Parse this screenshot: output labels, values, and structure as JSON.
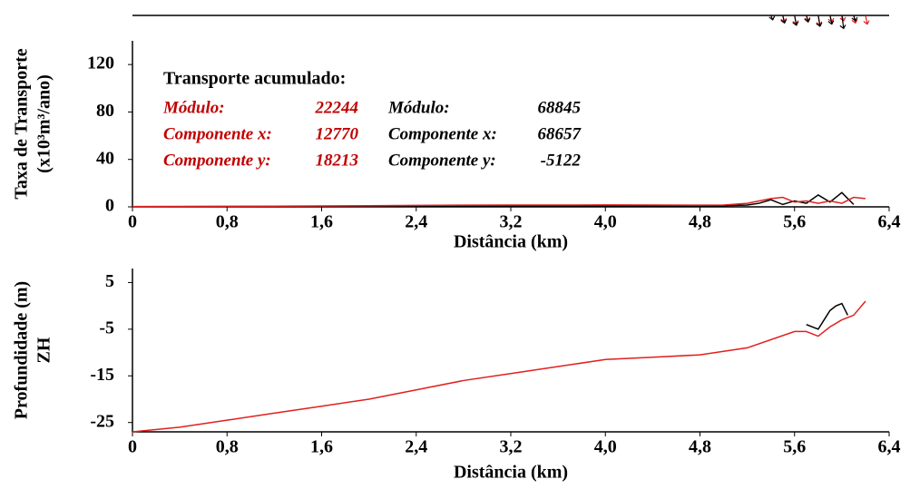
{
  "chart_data": [
    {
      "type": "line",
      "ylabel": [
        "Taxa de Transporte",
        "(x10³m³/ano)"
      ],
      "xlabel": "Distância (km)",
      "xlim": [
        0,
        6.4
      ],
      "xticks": [
        0,
        {
          "value": 0.8,
          "label": "0,8"
        },
        {
          "value": 1.6,
          "label": "1,6"
        },
        {
          "value": 2.4,
          "label": "2,4"
        },
        {
          "value": 3.2,
          "label": "3,2"
        },
        {
          "value": 4.0,
          "label": "4,0"
        },
        {
          "value": 4.8,
          "label": "4,8"
        },
        {
          "value": 5.6,
          "label": "5,6"
        },
        {
          "value": 6.4,
          "label": "6,4"
        }
      ],
      "ylim": [
        0,
        140
      ],
      "yticks": [
        0,
        40,
        80,
        120
      ],
      "annotation_title": "Transporte acumulado:",
      "annotations": [
        {
          "color": "#c00000",
          "rows": [
            {
              "label": "Módulo:",
              "value": 22244
            },
            {
              "label": "Componente x:",
              "value": 12770
            },
            {
              "label": "Componente y:",
              "value": 18213
            }
          ]
        },
        {
          "color": "#000000",
          "rows": [
            {
              "label": "Módulo:",
              "value": 68845
            },
            {
              "label": "Componente x:",
              "value": 68657
            },
            {
              "label": "Componente y:",
              "value": -5122
            }
          ]
        }
      ],
      "vectors": [
        {
          "color": "#e02020",
          "x": [
            5.5,
            5.6,
            5.7,
            5.8,
            5.9,
            6.0,
            6.1,
            6.2
          ],
          "values": [
            6,
            8,
            5,
            9,
            6,
            5,
            7,
            8
          ]
        },
        {
          "color": "#000000",
          "x": [
            5.4,
            5.5,
            5.6,
            5.7,
            5.8,
            5.9,
            6.0,
            6.1
          ],
          "values": [
            4,
            7,
            9,
            6,
            10,
            8,
            12,
            5
          ]
        }
      ],
      "series": [
        {
          "color": "#000000",
          "x": [
            0,
            0.4,
            0.8,
            1.2,
            1.6,
            2.0,
            2.4,
            2.8,
            3.2,
            3.6,
            4.0,
            4.4,
            4.8,
            5.0,
            5.2,
            5.3,
            5.4,
            5.5,
            5.6,
            5.7,
            5.8,
            5.9,
            6.0,
            6.1
          ],
          "values": [
            0.2,
            0.2,
            0.3,
            0.4,
            0.5,
            0.6,
            0.8,
            1,
            1,
            1,
            1,
            1,
            0.8,
            1,
            1.5,
            3,
            6,
            2,
            5,
            3,
            10,
            4,
            12,
            2
          ]
        },
        {
          "color": "#e02020",
          "x": [
            0,
            0.4,
            0.8,
            1.2,
            1.6,
            2.0,
            2.4,
            2.8,
            3.2,
            3.6,
            4.0,
            4.4,
            4.8,
            5.0,
            5.2,
            5.3,
            5.4,
            5.5,
            5.6,
            5.7,
            5.8,
            5.9,
            6.0,
            6.1,
            6.2
          ],
          "values": [
            0.3,
            0.4,
            0.5,
            0.6,
            0.8,
            1,
            1.2,
            1.4,
            1.5,
            1.5,
            1.6,
            1.5,
            1.4,
            1.5,
            3,
            5,
            7,
            8,
            4,
            5,
            3,
            5,
            3,
            8,
            7
          ]
        }
      ]
    },
    {
      "type": "line",
      "ylabel": [
        "Profundidade (m)",
        "ZH"
      ],
      "xlabel": "Distância (km)",
      "xlim": [
        0,
        6.4
      ],
      "xticks": [
        0,
        {
          "value": 0.8,
          "label": "0,8"
        },
        {
          "value": 1.6,
          "label": "1,6"
        },
        {
          "value": 2.4,
          "label": "2,4"
        },
        {
          "value": 3.2,
          "label": "3,2"
        },
        {
          "value": 4.0,
          "label": "4,0"
        },
        {
          "value": 4.8,
          "label": "4,8"
        },
        {
          "value": 5.6,
          "label": "5,6"
        },
        {
          "value": 6.4,
          "label": "6,4"
        }
      ],
      "ylim": [
        -27,
        8
      ],
      "yticks": [
        -25,
        -15,
        -5,
        5
      ],
      "series": [
        {
          "color": "#000000",
          "x": [
            5.7,
            5.75,
            5.8,
            5.85,
            5.9,
            5.95,
            6.0,
            6.05
          ],
          "values": [
            -4,
            -4.5,
            -5,
            -3,
            -1,
            0,
            0.5,
            -2
          ]
        },
        {
          "color": "#e02020",
          "x": [
            0,
            0.4,
            0.8,
            1.2,
            1.6,
            2.0,
            2.4,
            2.8,
            3.2,
            3.6,
            4.0,
            4.4,
            4.8,
            5.2,
            5.6,
            5.7,
            5.8,
            5.9,
            6.0,
            6.1,
            6.2
          ],
          "values": [
            -27,
            -26,
            -24.5,
            -23,
            -21.5,
            -20,
            -18,
            -16,
            -14.5,
            -13,
            -11.5,
            -11,
            -10.5,
            -9,
            -5.5,
            -5.5,
            -6.5,
            -4.5,
            -3,
            -2,
            1
          ]
        }
      ]
    }
  ]
}
